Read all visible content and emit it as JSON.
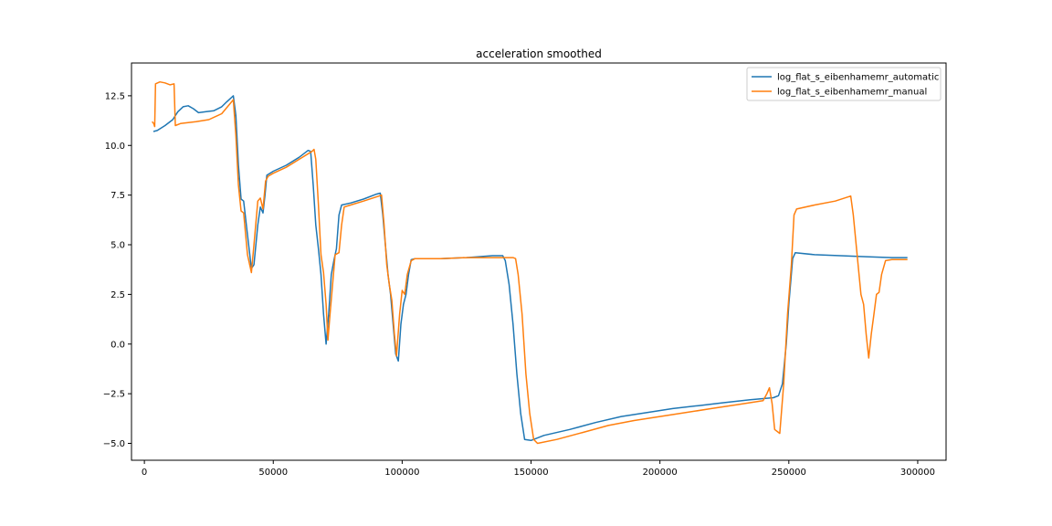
{
  "chart_data": {
    "type": "line",
    "title": "acceleration smoothed",
    "xlabel": "",
    "ylabel": "",
    "xlim": [
      -5000,
      311000
    ],
    "ylim": [
      -5.85,
      14.15
    ],
    "xticks": [
      0,
      50000,
      100000,
      150000,
      200000,
      250000,
      300000
    ],
    "xtick_labels": [
      "0",
      "50000",
      "100000",
      "150000",
      "200000",
      "250000",
      "300000"
    ],
    "yticks": [
      -5.0,
      -2.5,
      0.0,
      2.5,
      5.0,
      7.5,
      10.0,
      12.5
    ],
    "ytick_labels": [
      "−5.0",
      "−2.5",
      "0.0",
      "2.5",
      "5.0",
      "7.5",
      "10.0",
      "12.5"
    ],
    "grid": false,
    "legend_position": "upper-right",
    "series": [
      {
        "name": "log_flat_s_eibenhamemr_automatic",
        "color": "#1f77b4",
        "points": [
          [
            3500,
            10.7
          ],
          [
            5000,
            10.75
          ],
          [
            8000,
            11.0
          ],
          [
            11000,
            11.3
          ],
          [
            13000,
            11.7
          ],
          [
            15000,
            11.95
          ],
          [
            17000,
            12.0
          ],
          [
            19000,
            11.85
          ],
          [
            21000,
            11.65
          ],
          [
            24000,
            11.7
          ],
          [
            27000,
            11.75
          ],
          [
            30000,
            11.95
          ],
          [
            32000,
            12.2
          ],
          [
            34500,
            12.5
          ],
          [
            35500,
            11.5
          ],
          [
            36500,
            9.0
          ],
          [
            37500,
            7.3
          ],
          [
            38500,
            7.2
          ],
          [
            40000,
            5.5
          ],
          [
            41500,
            3.8
          ],
          [
            42500,
            4.0
          ],
          [
            44000,
            6.0
          ],
          [
            45000,
            6.9
          ],
          [
            46000,
            6.6
          ],
          [
            46800,
            7.5
          ],
          [
            47500,
            8.5
          ],
          [
            50000,
            8.7
          ],
          [
            55000,
            9.0
          ],
          [
            60000,
            9.4
          ],
          [
            63500,
            9.75
          ],
          [
            64500,
            9.7
          ],
          [
            65500,
            8.0
          ],
          [
            66500,
            6.0
          ],
          [
            67500,
            4.8
          ],
          [
            68500,
            3.5
          ],
          [
            69500,
            1.5
          ],
          [
            70500,
            0.0
          ],
          [
            71500,
            1.5
          ],
          [
            72500,
            3.5
          ],
          [
            73500,
            4.2
          ],
          [
            74500,
            4.8
          ],
          [
            75500,
            6.5
          ],
          [
            76500,
            7.0
          ],
          [
            80000,
            7.1
          ],
          [
            85000,
            7.3
          ],
          [
            90000,
            7.55
          ],
          [
            91500,
            7.6
          ],
          [
            92500,
            6.5
          ],
          [
            93500,
            5.0
          ],
          [
            94500,
            3.5
          ],
          [
            95500,
            2.5
          ],
          [
            96500,
            1.0
          ],
          [
            97500,
            -0.5
          ],
          [
            98500,
            -0.85
          ],
          [
            99500,
            1.0
          ],
          [
            100500,
            2.0
          ],
          [
            101500,
            2.5
          ],
          [
            102500,
            3.5
          ],
          [
            103500,
            4.25
          ],
          [
            105000,
            4.3
          ],
          [
            115000,
            4.3
          ],
          [
            125000,
            4.35
          ],
          [
            135000,
            4.45
          ],
          [
            139000,
            4.45
          ],
          [
            140000,
            4.2
          ],
          [
            141500,
            3.0
          ],
          [
            143000,
            1.0
          ],
          [
            144500,
            -1.5
          ],
          [
            146000,
            -3.5
          ],
          [
            147500,
            -4.8
          ],
          [
            150000,
            -4.85
          ],
          [
            155000,
            -4.6
          ],
          [
            165000,
            -4.3
          ],
          [
            175000,
            -3.95
          ],
          [
            185000,
            -3.65
          ],
          [
            195000,
            -3.45
          ],
          [
            205000,
            -3.25
          ],
          [
            215000,
            -3.1
          ],
          [
            225000,
            -2.95
          ],
          [
            235000,
            -2.8
          ],
          [
            244000,
            -2.7
          ],
          [
            246000,
            -2.6
          ],
          [
            247500,
            -2.0
          ],
          [
            249000,
            0.0
          ],
          [
            250000,
            2.0
          ],
          [
            251500,
            4.3
          ],
          [
            252500,
            4.6
          ],
          [
            260000,
            4.5
          ],
          [
            270000,
            4.45
          ],
          [
            280000,
            4.4
          ],
          [
            290000,
            4.35
          ],
          [
            296000,
            4.35
          ]
        ]
      },
      {
        "name": "log_flat_s_eibenhamemr_manual",
        "color": "#ff7f0e",
        "points": [
          [
            3000,
            11.2
          ],
          [
            3600,
            11.1
          ],
          [
            4000,
            10.95
          ],
          [
            4300,
            13.1
          ],
          [
            6000,
            13.2
          ],
          [
            8000,
            13.15
          ],
          [
            10000,
            13.05
          ],
          [
            11500,
            13.1
          ],
          [
            12000,
            11.0
          ],
          [
            14000,
            11.1
          ],
          [
            20000,
            11.2
          ],
          [
            25000,
            11.3
          ],
          [
            30000,
            11.6
          ],
          [
            34500,
            12.3
          ],
          [
            35500,
            10.5
          ],
          [
            36500,
            8.0
          ],
          [
            37500,
            6.7
          ],
          [
            38500,
            6.6
          ],
          [
            40000,
            4.5
          ],
          [
            41500,
            3.6
          ],
          [
            42500,
            5.0
          ],
          [
            44000,
            7.2
          ],
          [
            45000,
            7.35
          ],
          [
            46000,
            6.8
          ],
          [
            47000,
            8.2
          ],
          [
            48000,
            8.45
          ],
          [
            50000,
            8.6
          ],
          [
            55000,
            8.9
          ],
          [
            60000,
            9.3
          ],
          [
            65000,
            9.7
          ],
          [
            65800,
            9.8
          ],
          [
            66500,
            9.3
          ],
          [
            67500,
            7.0
          ],
          [
            68500,
            4.5
          ],
          [
            69500,
            3.6
          ],
          [
            70500,
            2.0
          ],
          [
            71200,
            0.2
          ],
          [
            72000,
            1.5
          ],
          [
            73000,
            3.0
          ],
          [
            74000,
            4.5
          ],
          [
            75500,
            4.6
          ],
          [
            76500,
            6.0
          ],
          [
            77500,
            6.9
          ],
          [
            80000,
            7.0
          ],
          [
            85000,
            7.2
          ],
          [
            91000,
            7.45
          ],
          [
            92000,
            7.5
          ],
          [
            93000,
            6.0
          ],
          [
            94000,
            4.0
          ],
          [
            95000,
            3.0
          ],
          [
            96000,
            2.2
          ],
          [
            97000,
            0.5
          ],
          [
            97800,
            -0.6
          ],
          [
            99000,
            1.5
          ],
          [
            100000,
            2.7
          ],
          [
            101000,
            2.5
          ],
          [
            102000,
            3.5
          ],
          [
            103500,
            4.2
          ],
          [
            105000,
            4.3
          ],
          [
            115000,
            4.3
          ],
          [
            125000,
            4.35
          ],
          [
            135000,
            4.35
          ],
          [
            143000,
            4.35
          ],
          [
            144000,
            4.3
          ],
          [
            145000,
            3.5
          ],
          [
            146500,
            1.5
          ],
          [
            148000,
            -1.5
          ],
          [
            149500,
            -3.5
          ],
          [
            151000,
            -4.8
          ],
          [
            152500,
            -5.0
          ],
          [
            160000,
            -4.8
          ],
          [
            170000,
            -4.45
          ],
          [
            180000,
            -4.1
          ],
          [
            190000,
            -3.85
          ],
          [
            200000,
            -3.65
          ],
          [
            210000,
            -3.45
          ],
          [
            220000,
            -3.25
          ],
          [
            230000,
            -3.05
          ],
          [
            240000,
            -2.85
          ],
          [
            241500,
            -2.5
          ],
          [
            242500,
            -2.2
          ],
          [
            243500,
            -3.0
          ],
          [
            244500,
            -4.3
          ],
          [
            246500,
            -4.5
          ],
          [
            248000,
            -2.0
          ],
          [
            249500,
            1.5
          ],
          [
            251000,
            4.0
          ],
          [
            252000,
            6.5
          ],
          [
            253000,
            6.8
          ],
          [
            260000,
            7.0
          ],
          [
            268000,
            7.2
          ],
          [
            274000,
            7.45
          ],
          [
            275000,
            6.5
          ],
          [
            276500,
            4.5
          ],
          [
            278000,
            2.5
          ],
          [
            279000,
            2.0
          ],
          [
            280000,
            0.5
          ],
          [
            281000,
            -0.7
          ],
          [
            282000,
            0.5
          ],
          [
            283000,
            1.5
          ],
          [
            284000,
            2.5
          ],
          [
            285000,
            2.6
          ],
          [
            286000,
            3.5
          ],
          [
            287500,
            4.2
          ],
          [
            290000,
            4.25
          ],
          [
            296000,
            4.25
          ]
        ]
      }
    ]
  }
}
